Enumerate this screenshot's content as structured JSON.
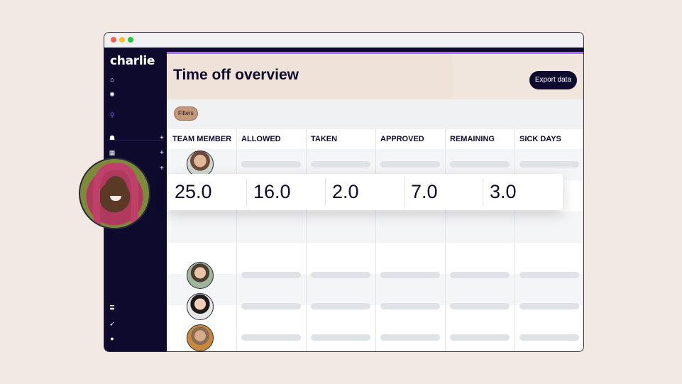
{
  "app": {
    "logo_text": "charlie",
    "title": "Time off overview",
    "export_label": "Export data",
    "filters_label": "Filters"
  },
  "colors": {
    "sidebar": "#0d0a2e",
    "accent": "#b06cff",
    "header_bg": "#f0e6de",
    "filters_bg": "#c4967a"
  },
  "sidebar": {
    "icons": [
      "home-icon",
      "gear-icon",
      "search-icon",
      "people-icon",
      "building-icon",
      "plus-icon",
      "stack-icon",
      "rocket-icon",
      "help-icon"
    ]
  },
  "table": {
    "columns": [
      "TEAM MEMBER",
      "ALLOWED",
      "TAKEN",
      "APPROVED",
      "REMAINING",
      "SICK DAYS"
    ],
    "row_count": 6
  },
  "highlight": {
    "values": [
      "25.0",
      "16.0",
      "2.0",
      "7.0",
      "3.0"
    ]
  }
}
